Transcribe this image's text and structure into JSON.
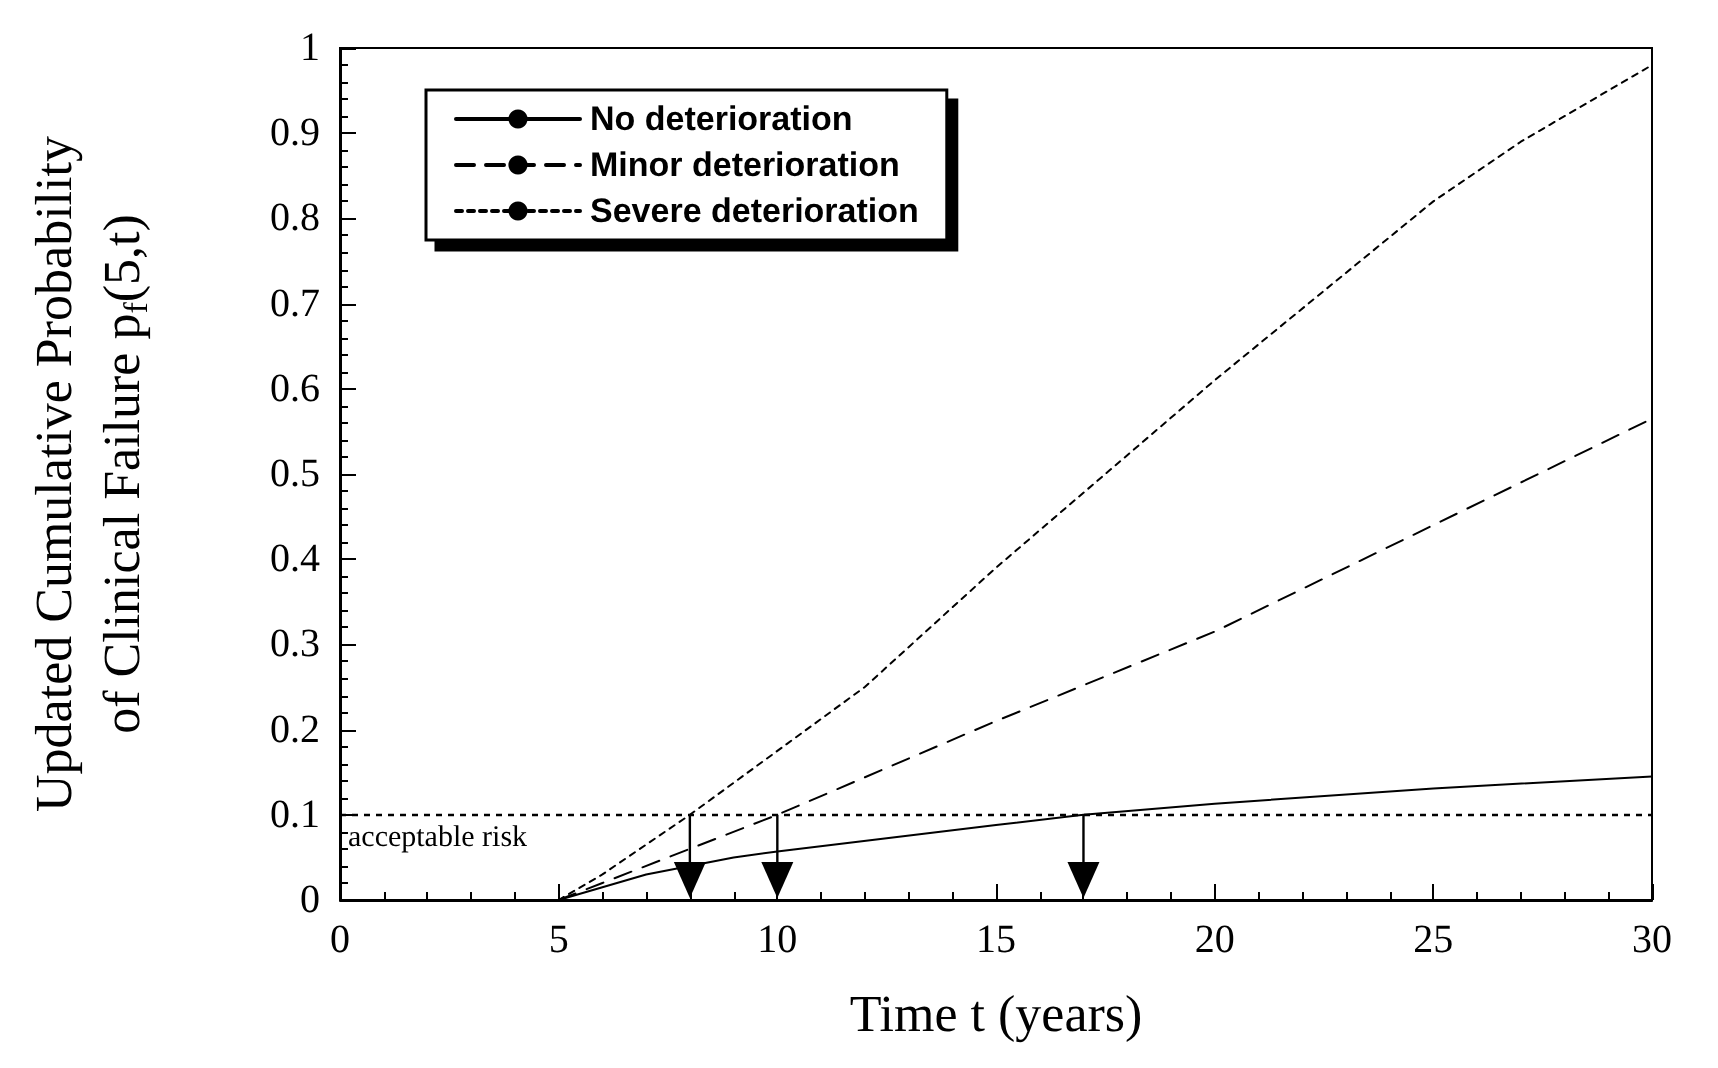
{
  "chart_data": {
    "type": "line",
    "xlabel": "Time t (years)",
    "ylabel": "Updated Cumulative Probability\nof Clinical Failure p$_{f}$(5,t)",
    "xlim": [
      0,
      30
    ],
    "xticks": [
      0,
      5,
      10,
      15,
      20,
      25,
      30
    ],
    "ylim": [
      0,
      1
    ],
    "yticks": [
      0,
      0.1,
      0.2,
      0.3,
      0.4,
      0.5,
      0.6,
      0.7,
      0.8,
      0.9,
      1
    ],
    "grid": false,
    "legend": "top left",
    "marker": "none",
    "series": [
      {
        "name": "No deterioration",
        "color": "#000000",
        "line_style": "solid",
        "x": [
          5,
          6,
          7,
          9,
          10,
          15,
          17,
          20,
          25,
          30
        ],
        "values": [
          0,
          0.015,
          0.03,
          0.05,
          0.057,
          0.088,
          0.1,
          0.113,
          0.131,
          0.145
        ]
      },
      {
        "name": "Minor deterioration",
        "color": "#000000",
        "line_style": "dashed",
        "x": [
          5,
          6,
          8,
          10,
          15,
          20,
          25,
          30
        ],
        "values": [
          0,
          0.02,
          0.06,
          0.1,
          0.21,
          0.315,
          0.44,
          0.565
        ]
      },
      {
        "name": "Severe deterioration",
        "color": "#000000",
        "line_style": "dotted",
        "x": [
          5,
          6,
          7,
          8,
          10,
          12,
          15,
          20,
          25,
          27,
          30
        ],
        "values": [
          0,
          0.03,
          0.065,
          0.1,
          0.175,
          0.25,
          0.39,
          0.61,
          0.82,
          0.89,
          0.98
        ]
      }
    ],
    "ref_lines": [
      {
        "axis": "y",
        "value": 0.1,
        "label": "acceptable risk",
        "line_style": "dotted",
        "color": "#000000"
      }
    ]
  }
}
